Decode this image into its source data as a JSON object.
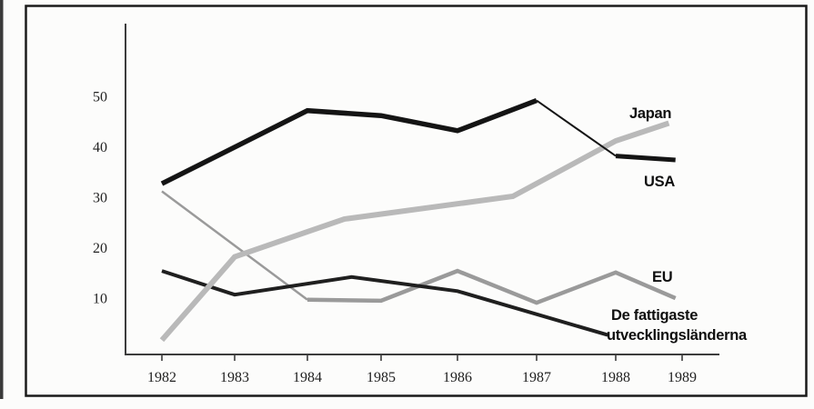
{
  "figure": {
    "background": "#fcfcfb",
    "frame_color": "#1a1a1a",
    "axis_color": "#3c3c3c",
    "tick_label_color": "#222222"
  },
  "chart_data": {
    "type": "line",
    "title": "",
    "xlabel": "",
    "ylabel": "",
    "x_ticks": [
      1982,
      1983,
      1984,
      1985,
      1986,
      1987,
      1988,
      1989
    ],
    "y_ticks": [
      10,
      20,
      30,
      40,
      50
    ],
    "ylim": [
      0,
      57
    ],
    "xlim": [
      1982,
      1989
    ],
    "grid": false,
    "legend_position": "labels-at-line-ends",
    "series": [
      {
        "name": "eu",
        "label": "EU",
        "color": "#9a9a9a",
        "segments": [
          {
            "width": 2.5,
            "points": [
              [
                1982,
                31
              ],
              [
                1984,
                9.5
              ]
            ]
          },
          {
            "width": 4.5,
            "points": [
              [
                1984,
                9.5
              ],
              [
                1985,
                9.3
              ],
              [
                1986,
                15.2
              ],
              [
                1987,
                8.9
              ],
              [
                1988,
                14.9
              ],
              [
                1988.9,
                9.8
              ]
            ]
          }
        ]
      },
      {
        "name": "poorest",
        "label_lines": [
          "De fattigaste",
          "utvecklingsländerna"
        ],
        "color": "#1f1f1f",
        "segments": [
          {
            "width": 4,
            "points": [
              [
                1982,
                15.2
              ],
              [
                1983,
                10.5
              ],
              [
                1984.6,
                14
              ],
              [
                1986,
                11.2
              ],
              [
                1987.9,
                2.5
              ]
            ]
          }
        ]
      },
      {
        "name": "japan",
        "label": "Japan",
        "color": "#b9b9b9",
        "segments": [
          {
            "width": 6,
            "points": [
              [
                1982,
                1.5
              ],
              [
                1983,
                18
              ],
              [
                1984.5,
                25.5
              ],
              [
                1986.7,
                30
              ],
              [
                1988,
                41
              ],
              [
                1988.8,
                44.5
              ]
            ]
          }
        ]
      },
      {
        "name": "usa",
        "label": "USA",
        "color": "#141414",
        "segments": [
          {
            "width": 5.5,
            "points": [
              [
                1982,
                32.5
              ],
              [
                1984,
                47
              ],
              [
                1985,
                46
              ],
              [
                1986,
                43
              ],
              [
                1987,
                49
              ]
            ]
          },
          {
            "width": 2,
            "points": [
              [
                1987,
                49
              ],
              [
                1988,
                38
              ]
            ]
          },
          {
            "width": 5,
            "points": [
              [
                1988,
                38
              ],
              [
                1988.9,
                37.2
              ]
            ]
          }
        ]
      }
    ]
  }
}
